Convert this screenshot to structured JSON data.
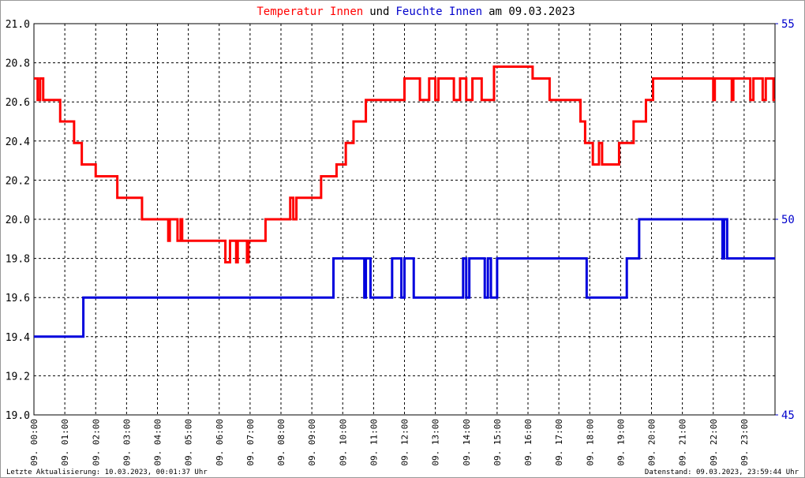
{
  "chart_data": {
    "type": "line",
    "title_parts": [
      {
        "text": "Temperatur Innen",
        "color": "#ff0000"
      },
      {
        "text": "und",
        "color": "#000000"
      },
      {
        "text": "Feuchte Innen",
        "color": "#0000cc"
      },
      {
        "text": "am 09.03.2023",
        "color": "#000000"
      }
    ],
    "footer_left": "Letzte Aktualisierung: 10.03.2023, 00:01:37 Uhr",
    "footer_right": "Datenstand: 09.03.2023, 23:59:44 Uhr",
    "grid": true,
    "xlim": [
      0,
      24
    ],
    "xticks": [
      {
        "value": 0,
        "label": "09. 00:00"
      },
      {
        "value": 1,
        "label": "09. 01:00"
      },
      {
        "value": 2,
        "label": "09. 02:00"
      },
      {
        "value": 3,
        "label": "09. 03:00"
      },
      {
        "value": 4,
        "label": "09. 04:00"
      },
      {
        "value": 5,
        "label": "09. 05:00"
      },
      {
        "value": 6,
        "label": "09. 06:00"
      },
      {
        "value": 7,
        "label": "09. 07:00"
      },
      {
        "value": 8,
        "label": "09. 08:00"
      },
      {
        "value": 9,
        "label": "09. 09:00"
      },
      {
        "value": 10,
        "label": "09. 10:00"
      },
      {
        "value": 11,
        "label": "09. 11:00"
      },
      {
        "value": 12,
        "label": "09. 12:00"
      },
      {
        "value": 13,
        "label": "09. 13:00"
      },
      {
        "value": 14,
        "label": "09. 14:00"
      },
      {
        "value": 15,
        "label": "09. 15:00"
      },
      {
        "value": 16,
        "label": "09. 16:00"
      },
      {
        "value": 17,
        "label": "09. 17:00"
      },
      {
        "value": 18,
        "label": "09. 18:00"
      },
      {
        "value": 19,
        "label": "09. 19:00"
      },
      {
        "value": 20,
        "label": "09. 20:00"
      },
      {
        "value": 21,
        "label": "09. 21:00"
      },
      {
        "value": 22,
        "label": "09. 22:00"
      },
      {
        "value": 23,
        "label": "09. 23:00"
      }
    ],
    "ylim": [
      19,
      21
    ],
    "yticks": [
      {
        "value": 19,
        "label": "19.0"
      },
      19.2,
      19.4,
      19.6,
      19.8,
      {
        "value": 20,
        "label": "20.0"
      },
      20.2,
      20.4,
      20.6,
      20.8,
      {
        "value": 21,
        "label": "21.0"
      }
    ],
    "y2lim": [
      45,
      55
    ],
    "y2ticks": [
      45,
      50,
      55
    ],
    "y2color": "#0000cc",
    "series": [
      {
        "name": "Temperatur Innen",
        "color": "#ff0000",
        "x": [
          0,
          0.12,
          0.12,
          0.2,
          0.2,
          0.3,
          0.3,
          0.85,
          0.85,
          1.3,
          1.3,
          1.55,
          1.55,
          2.0,
          2.0,
          2.7,
          2.7,
          3.5,
          3.5,
          4.35,
          4.35,
          4.4,
          4.4,
          4.65,
          4.65,
          4.75,
          4.75,
          4.8,
          4.8,
          6.2,
          6.2,
          6.35,
          6.35,
          6.55,
          6.55,
          6.6,
          6.6,
          6.9,
          6.9,
          6.95,
          6.95,
          7.5,
          7.5,
          8.3,
          8.3,
          8.4,
          8.4,
          8.5,
          8.5,
          9.3,
          9.3,
          9.8,
          9.8,
          10.1,
          10.1,
          10.35,
          10.35,
          10.75,
          10.75,
          12.0,
          12.0,
          12.5,
          12.5,
          12.8,
          12.8,
          13.0,
          13.0,
          13.1,
          13.1,
          13.6,
          13.6,
          13.8,
          13.8,
          14.0,
          14.0,
          14.2,
          14.2,
          14.5,
          14.5,
          14.9,
          14.9,
          16.15,
          16.15,
          16.7,
          16.7,
          17.7,
          17.7,
          17.85,
          17.85,
          18.1,
          18.1,
          18.3,
          18.3,
          18.4,
          18.4,
          18.95,
          18.95,
          19.42,
          19.42,
          19.82,
          19.82,
          20.05,
          20.05,
          22.0,
          22.0,
          22.05,
          22.05,
          22.6,
          22.6,
          22.65,
          22.65,
          23.2,
          23.2,
          23.3,
          23.3,
          23.6,
          23.6,
          23.7,
          23.7,
          23.95,
          23.95,
          24
        ],
        "values": [
          20.72,
          20.72,
          20.61,
          20.61,
          20.72,
          20.72,
          20.61,
          20.61,
          20.5,
          20.5,
          20.39,
          20.39,
          20.28,
          20.28,
          20.22,
          20.22,
          20.11,
          20.11,
          20.0,
          20.0,
          19.89,
          19.89,
          20.0,
          20.0,
          19.89,
          19.89,
          20.0,
          20.0,
          19.89,
          19.89,
          19.78,
          19.78,
          19.89,
          19.89,
          19.78,
          19.78,
          19.89,
          19.89,
          19.78,
          19.78,
          19.89,
          19.89,
          20.0,
          20.0,
          20.11,
          20.11,
          20.0,
          20.0,
          20.11,
          20.11,
          20.22,
          20.22,
          20.28,
          20.28,
          20.39,
          20.39,
          20.5,
          20.5,
          20.61,
          20.61,
          20.72,
          20.72,
          20.61,
          20.61,
          20.72,
          20.72,
          20.61,
          20.61,
          20.72,
          20.72,
          20.61,
          20.61,
          20.72,
          20.72,
          20.61,
          20.61,
          20.72,
          20.72,
          20.61,
          20.61,
          20.78,
          20.78,
          20.72,
          20.72,
          20.61,
          20.61,
          20.5,
          20.5,
          20.39,
          20.39,
          20.28,
          20.28,
          20.39,
          20.39,
          20.28,
          20.28,
          20.39,
          20.39,
          20.5,
          20.5,
          20.61,
          20.61,
          20.72,
          20.72,
          20.61,
          20.61,
          20.72,
          20.72,
          20.61,
          20.61,
          20.72,
          20.72,
          20.61,
          20.61,
          20.72,
          20.72,
          20.61,
          20.61,
          20.72,
          20.72,
          20.61,
          20.61
        ]
      },
      {
        "name": "Feuchte Innen",
        "color": "#0000dd",
        "axis": "y2",
        "x": [
          0,
          1.6,
          1.6,
          9.7,
          9.7,
          10.7,
          10.7,
          10.75,
          10.75,
          10.9,
          10.9,
          11.6,
          11.6,
          11.9,
          11.9,
          12.0,
          12.0,
          12.3,
          12.3,
          13.9,
          13.9,
          14.0,
          14.0,
          14.1,
          14.1,
          14.6,
          14.6,
          14.7,
          14.7,
          14.8,
          14.8,
          15.0,
          15.0,
          17.9,
          17.9,
          19.2,
          19.2,
          19.6,
          19.6,
          22.3,
          22.3,
          22.35,
          22.35,
          22.45,
          22.45,
          24
        ],
        "values": [
          47,
          47,
          48,
          48,
          49,
          49,
          48,
          48,
          49,
          49,
          48,
          48,
          49,
          49,
          48,
          48,
          49,
          49,
          48,
          48,
          49,
          49,
          48,
          48,
          49,
          49,
          48,
          48,
          49,
          49,
          48,
          48,
          49,
          49,
          48,
          48,
          49,
          49,
          50,
          50,
          49,
          49,
          50,
          50,
          49,
          49
        ]
      }
    ]
  }
}
